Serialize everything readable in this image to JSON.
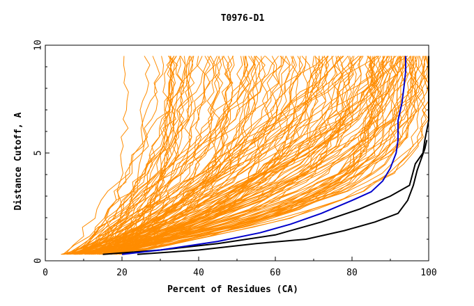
{
  "chart_data": {
    "type": "line",
    "title": "T0976-D1",
    "xlabel": "Percent of Residues (CA)",
    "ylabel": "Distance Cutoff, A",
    "xlim": [
      0,
      100
    ],
    "ylim": [
      0,
      10
    ],
    "xticks": [
      "0",
      "20",
      "40",
      "60",
      "80",
      "100"
    ],
    "yticks": [
      "0",
      "5",
      "10"
    ],
    "grid": false,
    "legend": "none",
    "colors": {
      "models": "#ff8c00",
      "highlight": "#0000cc",
      "reference": "#000000"
    },
    "highlighted_series": {
      "color": "#0000cc",
      "x": [
        20,
        30,
        45,
        56,
        64,
        72,
        80,
        85,
        88,
        90,
        91.5,
        92,
        92,
        93,
        93.5,
        94,
        94
      ],
      "y": [
        0.3,
        0.5,
        0.9,
        1.3,
        1.7,
        2.2,
        2.8,
        3.2,
        3.7,
        4.3,
        5.0,
        5.6,
        6.5,
        7.3,
        8.0,
        8.8,
        9.5
      ]
    },
    "reference_series": [
      {
        "color": "#000000",
        "x": [
          15,
          30,
          45,
          60,
          72,
          82,
          90,
          95,
          96.5,
          98.5,
          99,
          100,
          100,
          100
        ],
        "y": [
          0.3,
          0.5,
          0.8,
          1.2,
          1.8,
          2.4,
          3.0,
          3.5,
          4.5,
          5.0,
          5.6,
          6.5,
          8.0,
          9.5
        ]
      },
      {
        "color": "#000000",
        "x": [
          24,
          40,
          55,
          68,
          78,
          86,
          92,
          94.5,
          96,
          97,
          98,
          99,
          99.5
        ],
        "y": [
          0.3,
          0.5,
          0.8,
          1.0,
          1.4,
          1.8,
          2.2,
          2.8,
          3.5,
          4.2,
          4.7,
          5.2,
          5.6
        ]
      }
    ],
    "model_band": {
      "color": "#ff8c00",
      "start_x_range": [
        5,
        25
      ],
      "end_x_range": [
        20,
        100
      ],
      "ymin": 0.3,
      "ymax": 9.5
    }
  }
}
